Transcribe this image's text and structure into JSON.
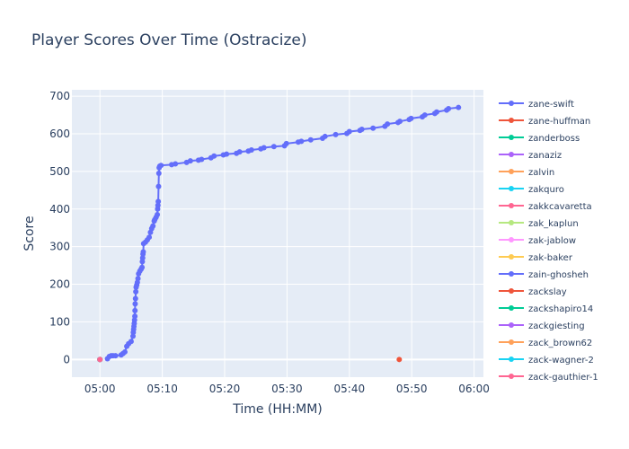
{
  "chart_data": {
    "type": "scatter",
    "mode": "lines+markers",
    "title": "Player Scores Over Time (Ostracize)",
    "xlabel": "Time (HH:MM)",
    "ylabel": "Score",
    "x_unit": "minutes after 05:00",
    "xlim": [
      -4.5,
      61.5
    ],
    "ylim": [
      -47,
      717
    ],
    "xticks": [
      0,
      10,
      20,
      30,
      40,
      50,
      60
    ],
    "xtick_labels": [
      "05:00",
      "05:10",
      "05:20",
      "05:30",
      "05:40",
      "05:50",
      "06:00"
    ],
    "yticks": [
      0,
      100,
      200,
      300,
      400,
      500,
      600,
      700
    ],
    "grid": true,
    "legend_position": "right",
    "series": [
      {
        "name": "zane-swift",
        "color": "#636efa",
        "x": [
          1.2,
          1.5,
          1.8,
          2.1,
          2.5,
          3.4,
          3.7,
          4.0,
          4.3,
          4.6,
          5.0,
          5.3,
          5.35,
          5.4,
          5.45,
          5.5,
          5.55,
          5.6,
          5.62,
          5.65,
          5.7,
          5.75,
          5.8,
          5.9,
          6.0,
          6.1,
          6.2,
          6.4,
          6.6,
          6.75,
          6.8,
          6.85,
          6.9,
          6.95,
          7.0,
          7.3,
          7.6,
          7.9,
          8.1,
          8.3,
          8.5,
          8.7,
          8.8,
          9.0,
          9.2,
          9.25,
          9.3,
          9.35,
          9.4,
          9.45,
          9.5,
          9.6,
          9.8,
          11.5,
          12.1,
          13.9,
          14.5,
          15.8,
          16.3,
          17.8,
          18.3,
          19.8,
          20.3,
          21.9,
          22.4,
          23.8,
          24.3,
          25.8,
          26.3,
          27.9,
          29.6,
          29.9,
          31.8,
          32.3,
          33.8,
          35.7,
          36.1,
          37.8,
          39.6,
          40.0,
          41.7,
          42.0,
          43.8,
          45.7,
          46.1,
          47.8,
          48.1,
          49.6,
          49.9,
          51.7,
          52.1,
          53.7,
          54.0,
          55.6,
          55.9,
          57.5
        ],
        "y": [
          2,
          8,
          10,
          10,
          10,
          12,
          16,
          20,
          35,
          42,
          48,
          62,
          72,
          80,
          88,
          96,
          105,
          115,
          130,
          148,
          162,
          180,
          192,
          198,
          205,
          215,
          228,
          235,
          240,
          245,
          260,
          270,
          280,
          286,
          308,
          312,
          318,
          325,
          338,
          348,
          355,
          368,
          372,
          378,
          385,
          400,
          410,
          420,
          460,
          495,
          510,
          514,
          516,
          518,
          520,
          524,
          528,
          530,
          532,
          536,
          541,
          544,
          546,
          548,
          552,
          554,
          557,
          560,
          563,
          566,
          568,
          574,
          578,
          580,
          584,
          588,
          593,
          598,
          601,
          606,
          609,
          612,
          615,
          620,
          626,
          630,
          633,
          638,
          641,
          645,
          650,
          654,
          658,
          663,
          667,
          670
        ]
      },
      {
        "name": "zane-huffman",
        "color": "#ef553b",
        "x": [
          0,
          48
        ],
        "y": [
          0,
          0
        ]
      },
      {
        "name": "zanderboss",
        "color": "#00cc96",
        "x": [
          0
        ],
        "y": [
          0
        ]
      },
      {
        "name": "zanaziz",
        "color": "#ab63fa",
        "x": [
          0
        ],
        "y": [
          0
        ]
      },
      {
        "name": "zalvin",
        "color": "#ffa15a",
        "x": [
          0
        ],
        "y": [
          0
        ]
      },
      {
        "name": "zakquro",
        "color": "#19d3f3",
        "x": [
          0
        ],
        "y": [
          0
        ]
      },
      {
        "name": "zakkcavaretta",
        "color": "#ff6692",
        "x": [
          0
        ],
        "y": [
          0
        ]
      },
      {
        "name": "zak_kaplun",
        "color": "#b6e880",
        "x": [
          0
        ],
        "y": [
          0
        ]
      },
      {
        "name": "zak-jablow",
        "color": "#ff97ff",
        "x": [
          0
        ],
        "y": [
          0
        ]
      },
      {
        "name": "zak-baker",
        "color": "#fecb52",
        "x": [
          0
        ],
        "y": [
          0
        ]
      },
      {
        "name": "zain-ghosheh",
        "color": "#636efa",
        "x": [
          0
        ],
        "y": [
          0
        ]
      },
      {
        "name": "zackslay",
        "color": "#ef553b",
        "x": [
          0
        ],
        "y": [
          0
        ]
      },
      {
        "name": "zackshapiro14",
        "color": "#00cc96",
        "x": [
          0
        ],
        "y": [
          0
        ]
      },
      {
        "name": "zackgiesting",
        "color": "#ab63fa",
        "x": [
          0
        ],
        "y": [
          0
        ]
      },
      {
        "name": "zack_brown62",
        "color": "#ffa15a",
        "x": [
          0
        ],
        "y": [
          0
        ]
      },
      {
        "name": "zack-wagner-2",
        "color": "#19d3f3",
        "x": [
          0
        ],
        "y": [
          0
        ]
      },
      {
        "name": "zack-gauthier-1",
        "color": "#ff6692",
        "x": [
          0
        ],
        "y": [
          0
        ]
      }
    ]
  },
  "colors": {
    "plot_background": "#e5ecf6",
    "grid": "#ffffff",
    "text": "#2a3f5f"
  }
}
